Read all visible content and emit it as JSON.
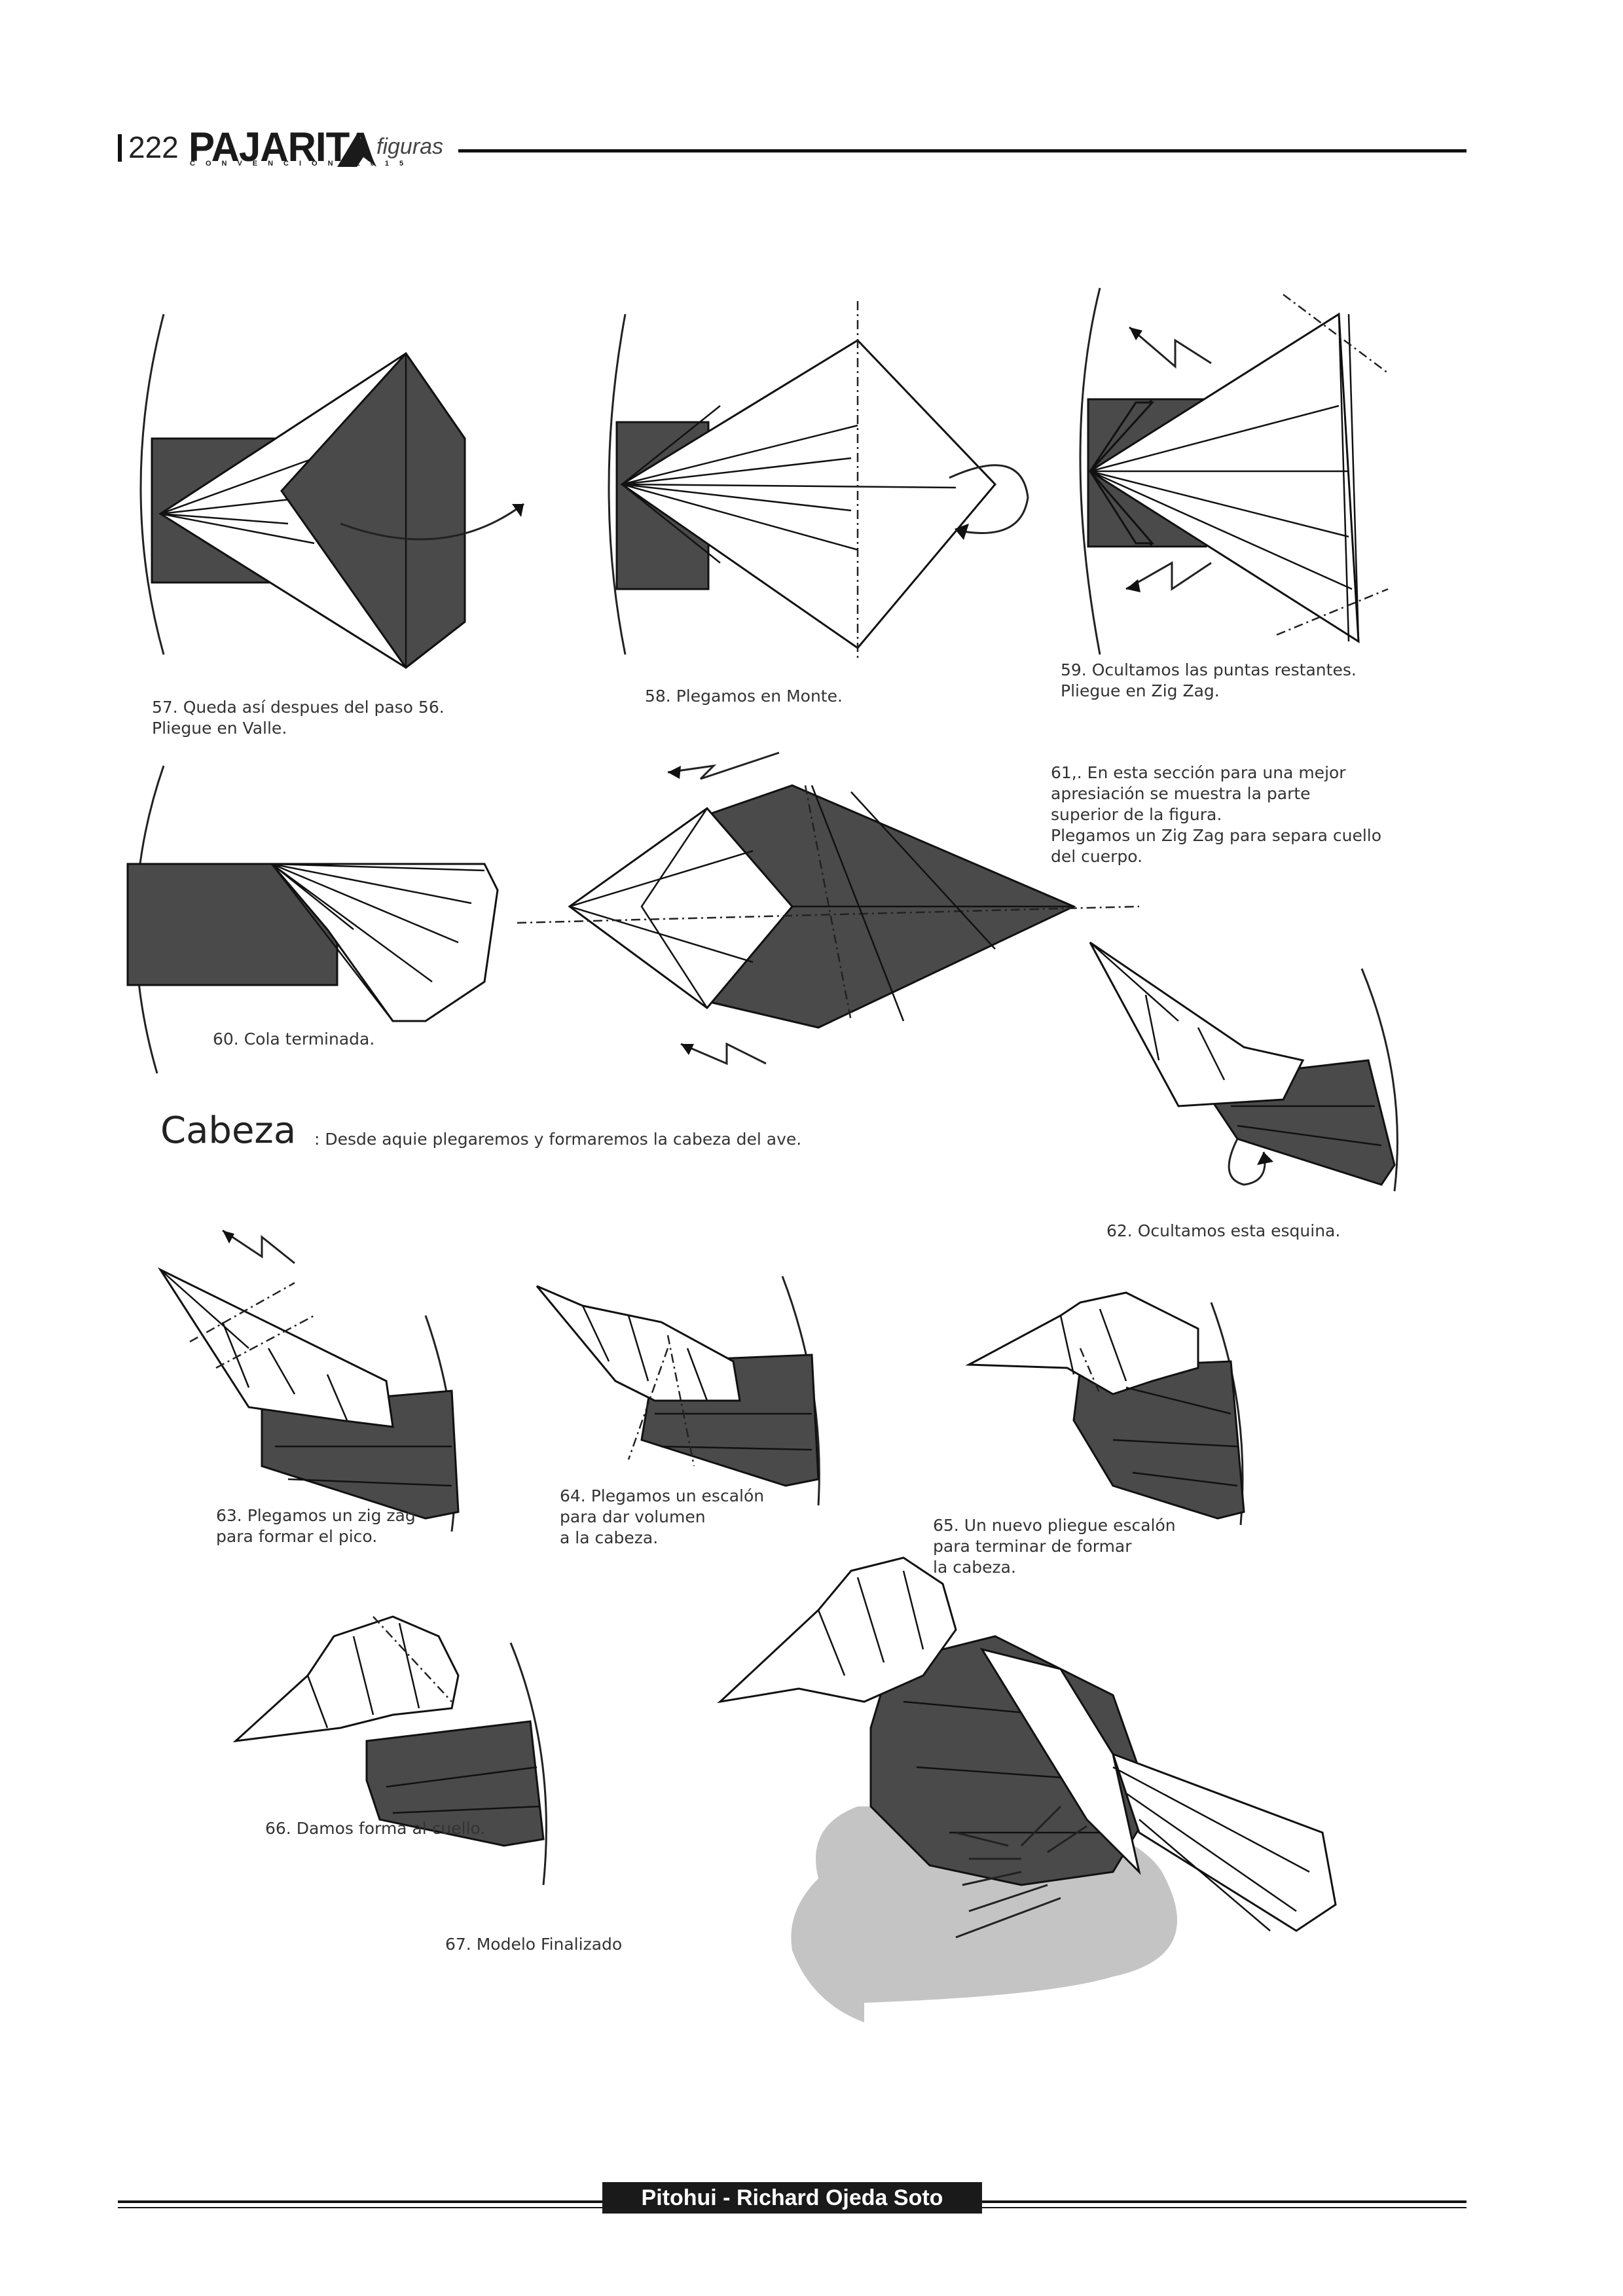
{
  "header": {
    "page_number": "222",
    "logo": "PAJARITA",
    "logo_sub": "CONVENCION 2015",
    "section": "figuras"
  },
  "captions": {
    "s57": "57.  Queda así despues del paso 56.\nPliegue en Valle.",
    "s58": "58. Plegamos en Monte.",
    "s59": "59. Ocultamos las puntas restantes.\nPliegue en Zig Zag.",
    "s60": "60. Cola terminada.",
    "s61": "61,. En esta sección para una mejor\napresiación se muestra la parte\nsuperior de la figura.\nPlegamos un Zig Zag para separa cuello\ndel cuerpo.",
    "s62": "62. Ocultamos esta esquina.",
    "s63": "63. Plegamos un zig zag\npara formar el pico.",
    "s64": "64. Plegamos un escalón\npara dar volumen\na la cabeza.",
    "s65": "65. Un nuevo pliegue  escalón\npara terminar de formar\nla cabeza.",
    "s66": "66. Damos forma al cuello.",
    "s67": "67. Modelo Finalizado"
  },
  "cabeza": {
    "title": "Cabeza",
    "text": ": Desde aquie plegaremos y formaremos la cabeza del ave."
  },
  "footer": {
    "credit": "Pitohui - Richard Ojeda Soto"
  }
}
